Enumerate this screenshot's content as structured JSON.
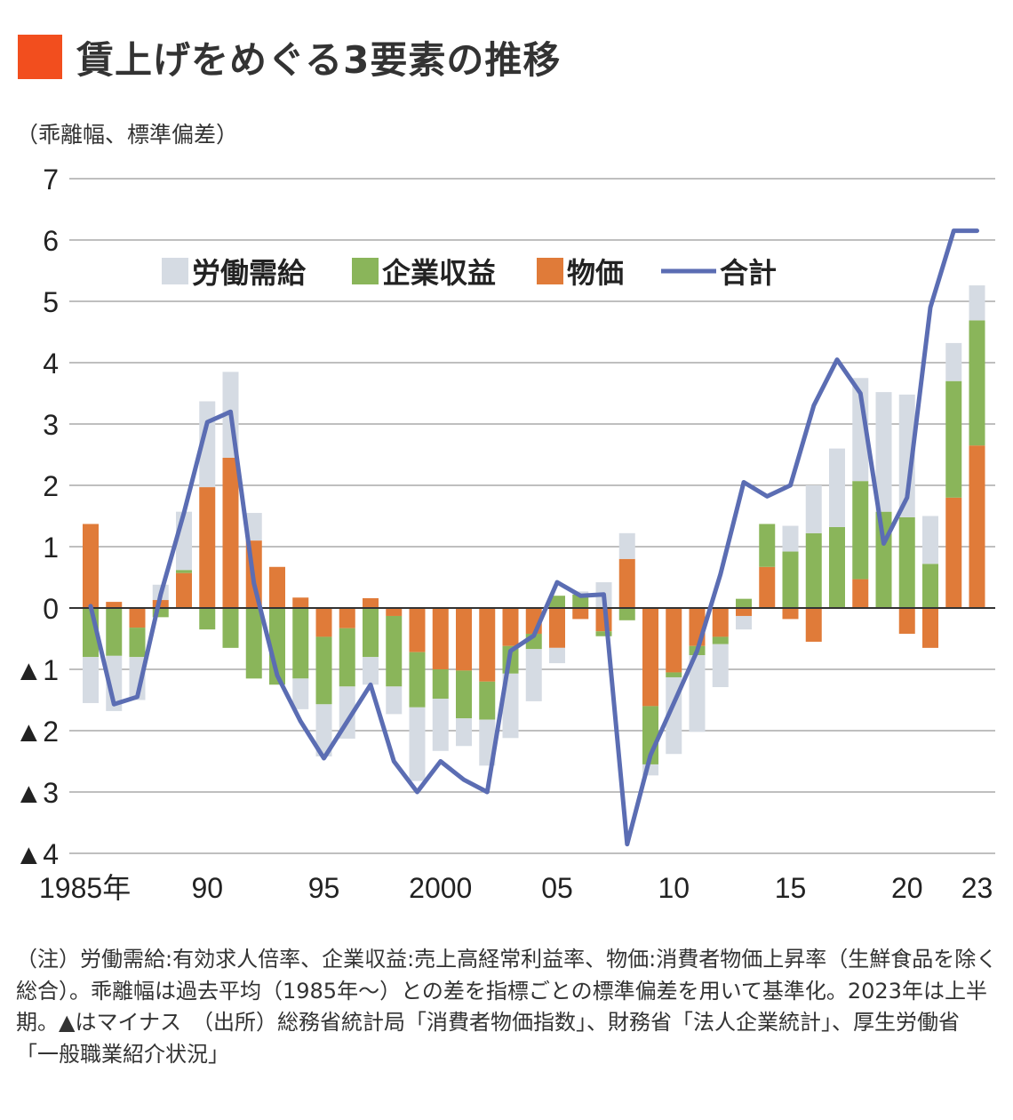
{
  "title": "賃上げをめぐる3要素の推移",
  "colors": {
    "title_mark": "#f24e1e",
    "labor": "#d5dbe3",
    "profit": "#8ab55a",
    "price": "#e07b39",
    "total": "#5b6db3",
    "grid": "#999999"
  },
  "chart_data": {
    "type": "bar",
    "stacked": true,
    "ylabel": "（乖離幅、標準偏差）",
    "ylim": [
      -4,
      7
    ],
    "y_ticks": [
      {
        "value": 7,
        "label": "7"
      },
      {
        "value": 6,
        "label": "6"
      },
      {
        "value": 5,
        "label": "5"
      },
      {
        "value": 4,
        "label": "4"
      },
      {
        "value": 3,
        "label": "3"
      },
      {
        "value": 2,
        "label": "2"
      },
      {
        "value": 1,
        "label": "1"
      },
      {
        "value": 0,
        "label": "0"
      },
      {
        "value": -1,
        "label": "▲1"
      },
      {
        "value": -2,
        "label": "▲2"
      },
      {
        "value": -3,
        "label": "▲3"
      },
      {
        "value": -4,
        "label": "▲4"
      }
    ],
    "x_ticks": [
      {
        "year": 1985,
        "label": "1985年"
      },
      {
        "year": 1990,
        "label": "90"
      },
      {
        "year": 1995,
        "label": "95"
      },
      {
        "year": 2000,
        "label": "2000"
      },
      {
        "year": 2005,
        "label": "05"
      },
      {
        "year": 2010,
        "label": "10"
      },
      {
        "year": 2015,
        "label": "15"
      },
      {
        "year": 2020,
        "label": "20"
      },
      {
        "year": 2023,
        "label": "23"
      }
    ],
    "legend_position": "top-left",
    "categories": [
      1985,
      1986,
      1987,
      1988,
      1989,
      1990,
      1991,
      1992,
      1993,
      1994,
      1995,
      1996,
      1997,
      1998,
      1999,
      2000,
      2001,
      2002,
      2003,
      2004,
      2005,
      2006,
      2007,
      2008,
      2009,
      2010,
      2011,
      2012,
      2013,
      2014,
      2015,
      2016,
      2017,
      2018,
      2019,
      2020,
      2021,
      2022,
      2023
    ],
    "series": [
      {
        "name": "労働需給",
        "type": "bar",
        "values": [
          -0.75,
          -0.9,
          -0.7,
          0.25,
          0.95,
          1.4,
          1.4,
          0.45,
          0,
          -0.5,
          -0.85,
          -0.85,
          -0.45,
          -0.45,
          -1.2,
          -0.85,
          -0.45,
          -0.75,
          -1.05,
          -0.85,
          -0.25,
          0.05,
          0.42,
          0.42,
          -0.18,
          -1.25,
          -1.25,
          -0.7,
          -0.22,
          0,
          0.42,
          0.78,
          1.28,
          1.68,
          1.95,
          2.0,
          0.78,
          0.62,
          0.57
        ]
      },
      {
        "name": "企業収益",
        "type": "bar",
        "values": [
          -0.8,
          -0.78,
          -0.48,
          -0.15,
          0.05,
          -0.35,
          -0.65,
          -1.15,
          -1.25,
          -1.15,
          -1.1,
          -0.95,
          -0.8,
          -1.15,
          -0.9,
          -0.48,
          -0.78,
          -0.62,
          -0.45,
          -0.25,
          0.2,
          0.22,
          -0.08,
          -0.2,
          -0.95,
          -0.08,
          -0.15,
          -0.12,
          0.15,
          0.7,
          0.92,
          1.22,
          1.32,
          1.6,
          1.57,
          1.48,
          0.72,
          1.9,
          2.04
        ]
      },
      {
        "name": "物価",
        "type": "bar",
        "values": [
          1.37,
          0.1,
          -0.32,
          0.13,
          0.57,
          1.97,
          2.45,
          1.1,
          0.67,
          0.17,
          -0.47,
          -0.33,
          0.16,
          -0.13,
          -0.72,
          -1.0,
          -1.02,
          -1.2,
          -0.62,
          -0.42,
          -0.65,
          -0.18,
          -0.38,
          0.8,
          -1.6,
          -1.05,
          -0.62,
          -0.47,
          -0.13,
          0.67,
          -0.18,
          -0.55,
          0,
          0.47,
          0,
          -0.42,
          -0.65,
          1.8,
          2.65
        ]
      },
      {
        "name": "合計",
        "type": "line",
        "values": [
          0.03,
          -1.57,
          -1.45,
          0.22,
          1.55,
          3.03,
          3.2,
          0.4,
          -1.1,
          -1.85,
          -2.45,
          -1.85,
          -1.25,
          -2.5,
          -3.0,
          -2.5,
          -2.8,
          -3.0,
          -0.7,
          -0.45,
          0.42,
          0.2,
          0.22,
          -3.85,
          -2.4,
          -1.55,
          -0.7,
          0.55,
          2.05,
          1.82,
          2.0,
          3.3,
          4.05,
          3.5,
          1.05,
          1.8,
          4.9,
          6.15,
          6.15
        ]
      }
    ]
  },
  "note": "（注）労働需給:有効求人倍率、企業収益:売上高経常利益率、物価:消費者物価上昇率（生鮮食品を除く総合）。乖離幅は過去平均（1985年～）との差を指標ごとの標準偏差を用いて基準化。2023年は上半期。▲はマイナス　（出所）総務省統計局「消費者物価指数」、財務省「法人企業統計」、厚生労働省「一般職業紹介状況」"
}
